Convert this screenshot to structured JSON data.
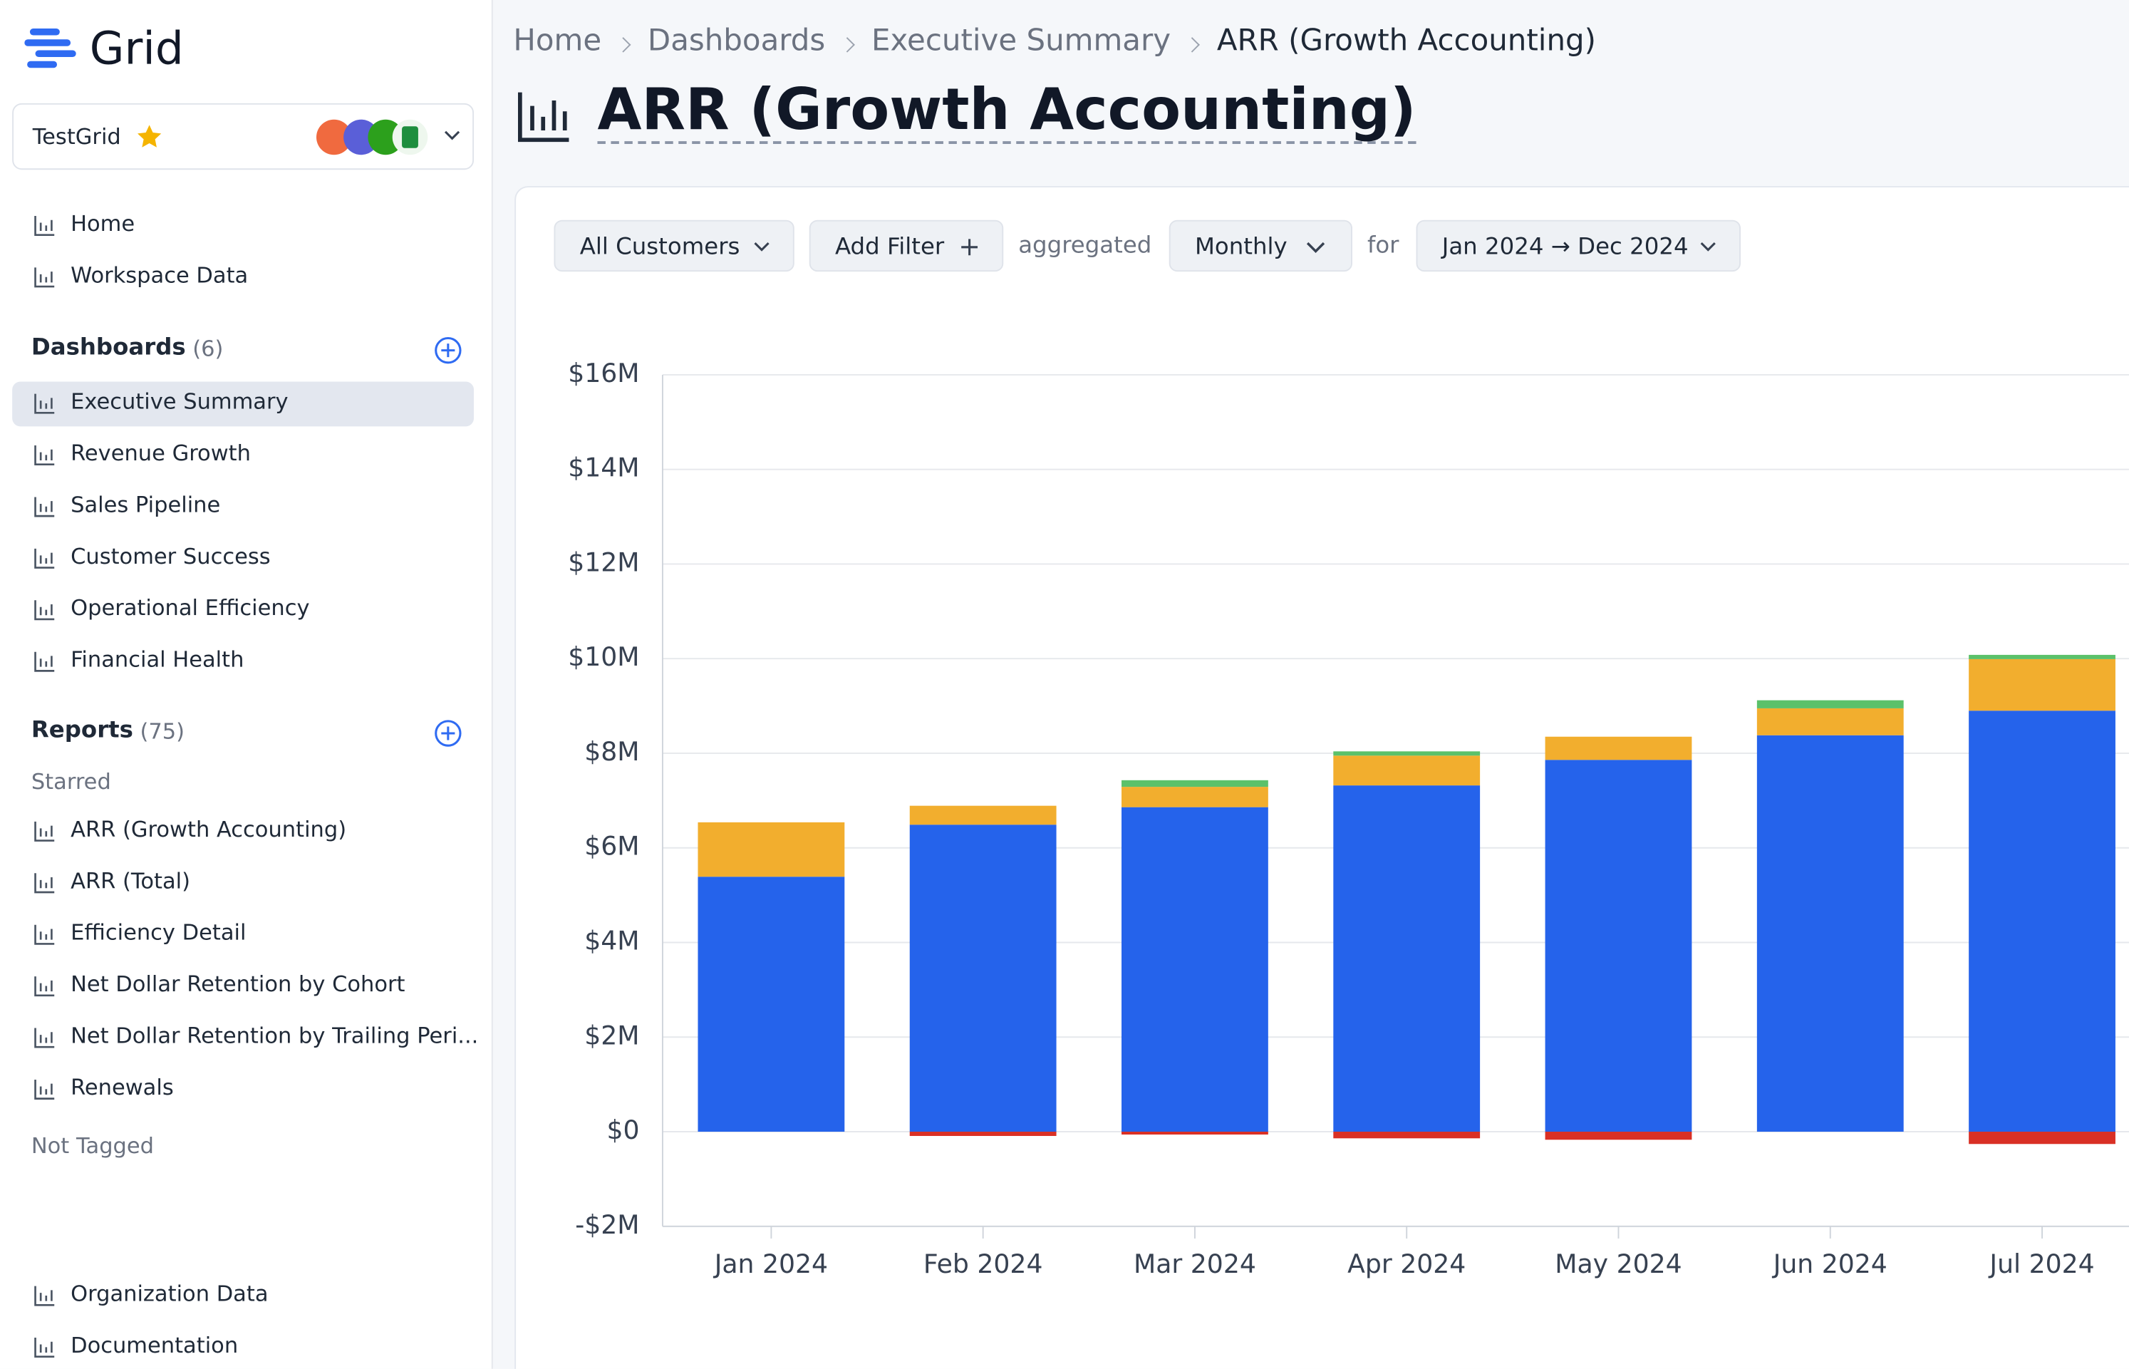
{
  "sidebar": {
    "brand": "Grid",
    "workspace": "TestGrid",
    "nav": [
      "Home",
      "Workspace Data"
    ],
    "dashboards": {
      "title": "Dashboards",
      "count": "(6)",
      "items": [
        "Executive Summary",
        "Revenue Growth",
        "Sales Pipeline",
        "Customer Success",
        "Operational Efficiency",
        "Financial Health"
      ]
    },
    "reports": {
      "title": "Reports",
      "count": "(75)",
      "starred": "Starred",
      "items": [
        "ARR (Growth Accounting)",
        "ARR (Total)",
        "Efficiency Detail",
        "Net Dollar Retention by Cohort",
        "Net Dollar Retention by Trailing Peri...",
        "Renewals"
      ],
      "not_tagged": "Not Tagged"
    },
    "footer": [
      "Organization Data",
      "Documentation"
    ]
  },
  "breadcrumb": [
    "Home",
    "Dashboards",
    "Executive Summary",
    "ARR (Growth Accounting)"
  ],
  "page_title": "ARR (Growth Accounting)",
  "filters": {
    "segment": "All Customers",
    "add_filter": "Add Filter",
    "aggregated": "aggregated",
    "period": "Monthly",
    "for": "for",
    "range": "Jan 2024 → Dec 2024"
  },
  "chart_data": {
    "type": "stacked_bar",
    "categories": [
      "Jan 2024",
      "Feb 2024",
      "Mar 2024",
      "Apr 2024",
      "May 2024",
      "Jun 2024",
      "Jul 2024"
    ],
    "series": [
      {
        "color": "#2563eb",
        "values": [
          5.39,
          6.49,
          6.86,
          7.32,
          7.86,
          8.38,
          8.9
        ]
      },
      {
        "color": "#f2ae2e",
        "values": [
          1.15,
          0.4,
          0.43,
          0.63,
          0.49,
          0.57,
          1.09
        ]
      },
      {
        "color": "#5bc16a",
        "values": [
          0,
          0,
          0.14,
          0.09,
          0,
          0.17,
          0.09
        ]
      },
      {
        "color": "#d93025",
        "values": [
          0,
          -0.09,
          -0.06,
          -0.14,
          -0.17,
          0,
          -0.26
        ]
      }
    ],
    "ylim": [
      -2,
      16
    ],
    "yticks": [
      {
        "value": -2,
        "label": "-$2M"
      },
      {
        "value": 0,
        "label": "$0"
      },
      {
        "value": 2,
        "label": "$2M"
      },
      {
        "value": 4,
        "label": "$4M"
      },
      {
        "value": 6,
        "label": "$6M"
      },
      {
        "value": 8,
        "label": "$8M"
      },
      {
        "value": 10,
        "label": "$10M"
      },
      {
        "value": 12,
        "label": "$12M"
      },
      {
        "value": 14,
        "label": "$14M"
      },
      {
        "value": 16,
        "label": "$16M"
      }
    ],
    "grid": true
  }
}
